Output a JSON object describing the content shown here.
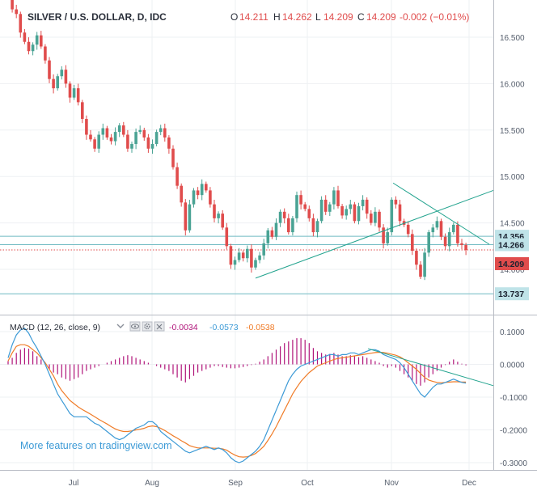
{
  "header": {
    "title": "SILVER / U.S. DOLLAR, D, IDC",
    "o_label": "O",
    "o_value": "14.211",
    "h_label": "H",
    "h_value": "14.262",
    "l_label": "L",
    "l_value": "14.209",
    "c_label": "C",
    "c_value": "14.209",
    "change": "-0.002 (−0.01%)"
  },
  "colors": {
    "up": "#4aa394",
    "down": "#e04c4c",
    "macd": "#3c9ad6",
    "signal": "#f07c28",
    "hist": "#b0157a",
    "trend": "#22a38e",
    "hline": "#6fbac2",
    "last": "#e04c4c"
  },
  "price_badges": [
    "14.356",
    "14.266",
    "14.209",
    "13.737"
  ],
  "macd": {
    "label": "MACD (12, 26, close, 9)",
    "hist_value": "-0.0034",
    "macd_value": "-0.0573",
    "signal_value": "-0.0538",
    "chevron_icon": "chevron-down-icon",
    "eye_icon": "eye-icon",
    "gear_icon": "gear-icon",
    "close_icon": "close-icon"
  },
  "promo": "More features on tradingview.com",
  "chart_data": [
    {
      "type": "candlestick",
      "title": "SILVER / U.S. DOLLAR, D, IDC",
      "x_ticks": [
        "Jul",
        "Aug",
        "Sep",
        "Oct",
        "Nov",
        "Dec"
      ],
      "y_ticks": [
        "16.500",
        "16.000",
        "15.500",
        "15.000",
        "14.500",
        "14.000"
      ],
      "ylim": [
        13.62,
        17.02
      ],
      "horizontal_lines": [
        14.356,
        14.266,
        13.737
      ],
      "last_price": 14.209,
      "series": [
        {
          "name": "silver",
          "close": [
            16.95,
            16.8,
            16.75,
            16.55,
            16.45,
            16.35,
            16.42,
            16.52,
            16.4,
            16.25,
            16.05,
            15.95,
            16.08,
            16.15,
            16.0,
            15.85,
            15.95,
            15.8,
            15.62,
            15.45,
            15.4,
            15.3,
            15.45,
            15.52,
            15.42,
            15.38,
            15.48,
            15.55,
            15.45,
            15.3,
            15.35,
            15.48,
            15.5,
            15.42,
            15.3,
            15.35,
            15.48,
            15.52,
            15.42,
            15.3,
            15.1,
            14.9,
            14.72,
            14.42,
            14.7,
            14.85,
            14.8,
            14.92,
            14.85,
            14.7,
            14.55,
            14.6,
            14.45,
            14.25,
            14.05,
            14.1,
            14.18,
            14.12,
            14.22,
            14.02,
            14.1,
            14.15,
            14.28,
            14.42,
            14.35,
            14.5,
            14.62,
            14.55,
            14.4,
            14.55,
            14.8,
            14.7,
            14.65,
            14.55,
            14.4,
            14.52,
            14.75,
            14.62,
            14.7,
            14.85,
            14.68,
            14.58,
            14.65,
            14.7,
            14.52,
            14.68,
            14.75,
            14.6,
            14.5,
            14.62,
            14.45,
            14.28,
            14.4,
            14.75,
            14.7,
            14.52,
            14.48,
            14.38,
            14.2,
            14.05,
            13.92,
            14.18,
            14.4,
            14.45,
            14.52,
            14.35,
            14.25,
            14.4,
            14.48,
            14.28,
            14.262,
            14.209
          ]
        }
      ]
    },
    {
      "type": "line",
      "title": "MACD (12, 26, close, 9)",
      "y_ticks": [
        "0.1000",
        "0.0000",
        "-0.1000",
        "-0.2000",
        "-0.3000"
      ],
      "ylim": [
        -0.31,
        0.125
      ],
      "series": [
        {
          "name": "histogram",
          "values": [
            0.01,
            0.02,
            0.035,
            0.045,
            0.05,
            0.048,
            0.04,
            0.025,
            0.015,
            0.0,
            -0.015,
            -0.025,
            -0.03,
            -0.04,
            -0.045,
            -0.05,
            -0.045,
            -0.04,
            -0.03,
            -0.02,
            -0.015,
            -0.01,
            -0.005,
            0.0,
            0.005,
            0.01,
            0.015,
            0.02,
            0.025,
            0.028,
            0.025,
            0.02,
            0.015,
            0.01,
            0.005,
            0.0,
            -0.005,
            -0.01,
            -0.015,
            -0.02,
            -0.03,
            -0.04,
            -0.05,
            -0.055,
            -0.045,
            -0.035,
            -0.025,
            -0.02,
            -0.015,
            -0.01,
            -0.005,
            -0.005,
            -0.008,
            -0.01,
            -0.012,
            -0.012,
            -0.01,
            -0.008,
            -0.005,
            -0.002,
            0.002,
            0.008,
            0.015,
            0.025,
            0.035,
            0.045,
            0.055,
            0.065,
            0.07,
            0.075,
            0.08,
            0.08,
            0.075,
            0.065,
            0.05,
            0.04,
            0.035,
            0.03,
            0.032,
            0.035,
            0.03,
            0.025,
            0.025,
            0.028,
            0.025,
            0.022,
            0.025,
            0.02,
            0.015,
            0.01,
            0.005,
            -0.005,
            -0.01,
            -0.005,
            -0.01,
            -0.02,
            -0.03,
            -0.04,
            -0.05,
            -0.06,
            -0.065,
            -0.055,
            -0.04,
            -0.03,
            -0.02,
            -0.01,
            -0.002,
            0.008,
            0.015,
            0.008,
            0.002,
            -0.003
          ]
        },
        {
          "name": "macd",
          "values": [
            0.02,
            0.06,
            0.09,
            0.105,
            0.11,
            0.095,
            0.07,
            0.05,
            0.025,
            0.0,
            -0.03,
            -0.06,
            -0.09,
            -0.11,
            -0.13,
            -0.15,
            -0.16,
            -0.16,
            -0.16,
            -0.16,
            -0.17,
            -0.18,
            -0.185,
            -0.195,
            -0.205,
            -0.215,
            -0.225,
            -0.23,
            -0.225,
            -0.215,
            -0.205,
            -0.195,
            -0.19,
            -0.185,
            -0.175,
            -0.175,
            -0.185,
            -0.205,
            -0.215,
            -0.225,
            -0.235,
            -0.245,
            -0.255,
            -0.265,
            -0.27,
            -0.265,
            -0.26,
            -0.255,
            -0.25,
            -0.255,
            -0.26,
            -0.255,
            -0.26,
            -0.27,
            -0.285,
            -0.295,
            -0.3,
            -0.295,
            -0.285,
            -0.275,
            -0.265,
            -0.25,
            -0.23,
            -0.2,
            -0.17,
            -0.14,
            -0.11,
            -0.08,
            -0.05,
            -0.03,
            -0.015,
            -0.005,
            0.0,
            0.005,
            0.01,
            0.015,
            0.02,
            0.025,
            0.03,
            0.03,
            0.025,
            0.03,
            0.03,
            0.035,
            0.035,
            0.03,
            0.035,
            0.04,
            0.045,
            0.045,
            0.04,
            0.03,
            0.025,
            0.02,
            0.015,
            0.005,
            -0.01,
            -0.03,
            -0.05,
            -0.07,
            -0.09,
            -0.1,
            -0.085,
            -0.07,
            -0.06,
            -0.06,
            -0.055,
            -0.05,
            -0.045,
            -0.05,
            -0.055,
            -0.057
          ]
        },
        {
          "name": "signal",
          "values": [
            0.01,
            0.035,
            0.055,
            0.06,
            0.06,
            0.055,
            0.045,
            0.035,
            0.02,
            0.005,
            -0.015,
            -0.035,
            -0.06,
            -0.08,
            -0.095,
            -0.11,
            -0.12,
            -0.13,
            -0.138,
            -0.145,
            -0.152,
            -0.16,
            -0.168,
            -0.175,
            -0.182,
            -0.19,
            -0.197,
            -0.202,
            -0.205,
            -0.205,
            -0.203,
            -0.2,
            -0.198,
            -0.195,
            -0.19,
            -0.188,
            -0.19,
            -0.195,
            -0.202,
            -0.21,
            -0.218,
            -0.225,
            -0.233,
            -0.24,
            -0.248,
            -0.252,
            -0.255,
            -0.255,
            -0.255,
            -0.255,
            -0.256,
            -0.256,
            -0.258,
            -0.262,
            -0.27,
            -0.277,
            -0.282,
            -0.283,
            -0.282,
            -0.278,
            -0.272,
            -0.262,
            -0.25,
            -0.232,
            -0.212,
            -0.19,
            -0.165,
            -0.14,
            -0.115,
            -0.09,
            -0.07,
            -0.052,
            -0.038,
            -0.025,
            -0.015,
            -0.005,
            0.0,
            0.005,
            0.01,
            0.015,
            0.018,
            0.02,
            0.022,
            0.024,
            0.026,
            0.028,
            0.03,
            0.032,
            0.034,
            0.036,
            0.037,
            0.036,
            0.034,
            0.031,
            0.028,
            0.023,
            0.015,
            0.005,
            -0.005,
            -0.015,
            -0.028,
            -0.04,
            -0.048,
            -0.052,
            -0.055,
            -0.056,
            -0.055,
            -0.054,
            -0.053,
            -0.053,
            -0.054,
            -0.054
          ]
        }
      ]
    }
  ]
}
